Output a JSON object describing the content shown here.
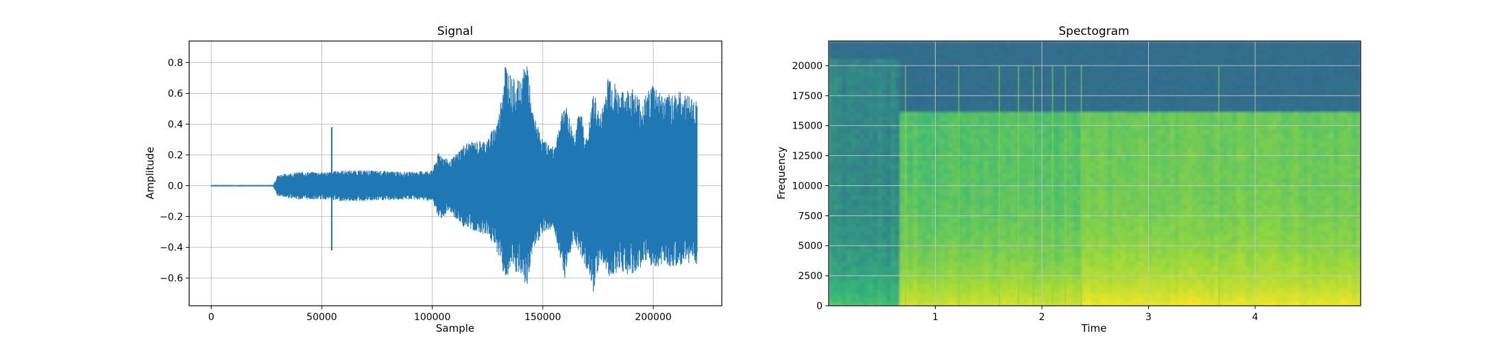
{
  "chart_data": [
    {
      "type": "line",
      "title": "Signal",
      "xlabel": "Sample",
      "ylabel": "Amplitude",
      "xlim": [
        -10000,
        231000
      ],
      "ylim": [
        -0.78,
        0.94
      ],
      "xticks": [
        0,
        50000,
        100000,
        150000,
        200000
      ],
      "xtick_labels": [
        "0",
        "50000",
        "100000",
        "150000",
        "200000"
      ],
      "yticks": [
        -0.6,
        -0.4,
        -0.2,
        0.0,
        0.2,
        0.4,
        0.6,
        0.8
      ],
      "ytick_labels": [
        "−0.6",
        "−0.4",
        "−0.2",
        "0.0",
        "0.2",
        "0.4",
        "0.6",
        "0.8"
      ],
      "grid": true,
      "series_color": "#1f77b4",
      "envelope": {
        "x": [
          0,
          28000,
          30000,
          40000,
          54000,
          57000,
          70000,
          90000,
          100000,
          103000,
          108000,
          115000,
          125000,
          130000,
          133000,
          136000,
          140000,
          143000,
          145000,
          150000,
          155000,
          160000,
          164000,
          167000,
          170000,
          173000,
          176000,
          180000,
          185000,
          190000,
          195000,
          200000,
          205000,
          210000,
          215000,
          220000
        ],
        "upper": [
          0.005,
          0.005,
          0.07,
          0.09,
          0.09,
          0.1,
          0.1,
          0.09,
          0.1,
          0.22,
          0.16,
          0.28,
          0.3,
          0.45,
          0.82,
          0.7,
          0.68,
          0.85,
          0.5,
          0.3,
          0.25,
          0.55,
          0.35,
          0.5,
          0.3,
          0.62,
          0.45,
          0.75,
          0.6,
          0.65,
          0.55,
          0.68,
          0.58,
          0.62,
          0.6,
          0.55
        ],
        "lower": [
          -0.005,
          -0.005,
          -0.07,
          -0.09,
          -0.09,
          -0.1,
          -0.1,
          -0.09,
          -0.1,
          -0.22,
          -0.18,
          -0.28,
          -0.32,
          -0.45,
          -0.62,
          -0.55,
          -0.6,
          -0.67,
          -0.45,
          -0.3,
          -0.28,
          -0.6,
          -0.35,
          -0.45,
          -0.55,
          -0.7,
          -0.48,
          -0.6,
          -0.55,
          -0.6,
          -0.52,
          -0.55,
          -0.5,
          -0.55,
          -0.5,
          -0.52
        ]
      },
      "spikes": [
        {
          "x": 54500,
          "upper": 0.38,
          "lower": -0.42
        }
      ]
    },
    {
      "type": "heatmap",
      "title": "Spectogram",
      "xlabel": "Time",
      "ylabel": "Frequency",
      "xlim": [
        0.0,
        4.99
      ],
      "ylim": [
        0,
        22050
      ],
      "xticks": [
        1,
        2,
        3,
        4
      ],
      "xtick_labels": [
        "1",
        "2",
        "3",
        "4"
      ],
      "yticks": [
        0,
        2500,
        5000,
        7500,
        10000,
        12500,
        15000,
        17500,
        20000
      ],
      "ytick_labels": [
        "0",
        "2500",
        "5000",
        "7500",
        "10000",
        "12500",
        "15000",
        "17500",
        "20000"
      ],
      "grid": true,
      "colormap": [
        "#440154",
        "#31688e",
        "#35b779",
        "#a0da39",
        "#fde725"
      ],
      "time_segments": [
        {
          "t0": 0.0,
          "t1": 0.66,
          "cutoff_hz": 20500,
          "level_below": 0.35,
          "level_above": 0.27,
          "low_boost": 0.2
        },
        {
          "t0": 0.66,
          "t1": 2.37,
          "cutoff_hz": 16100,
          "level_below": 0.56,
          "level_above": 0.27,
          "low_boost": 0.32
        },
        {
          "t0": 2.37,
          "t1": 4.99,
          "cutoff_hz": 16100,
          "level_below": 0.62,
          "level_above": 0.27,
          "low_boost": 0.34
        }
      ],
      "transients": [
        0.72,
        1.22,
        1.6,
        1.78,
        1.92,
        2.1,
        2.22,
        2.37,
        3.66
      ]
    }
  ]
}
